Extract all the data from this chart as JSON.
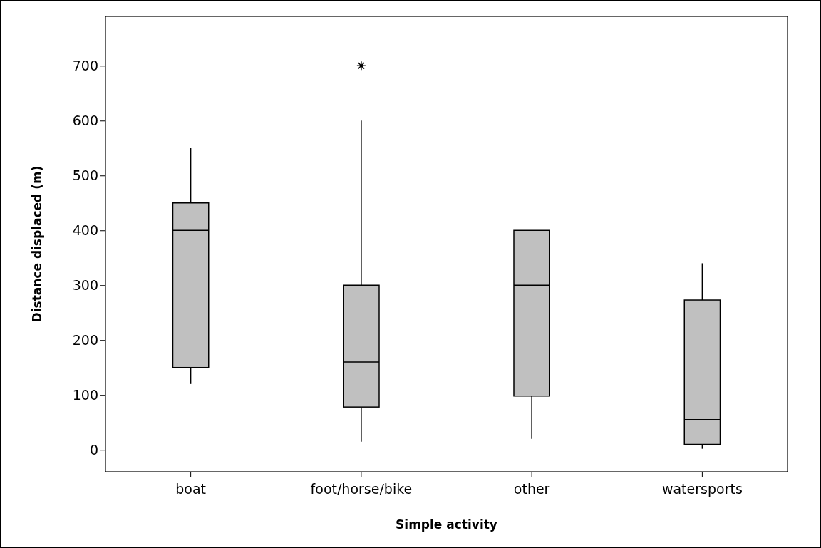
{
  "chart_data": {
    "type": "box",
    "xlabel": "Simple activity",
    "ylabel": "Distance displaced (m)",
    "categories": [
      "boat",
      "foot/horse/bike",
      "other",
      "watersports"
    ],
    "color": "#c0c0c0",
    "boxes": [
      {
        "low": 120,
        "q1": 150,
        "median": 400,
        "q3": 450,
        "high": 550
      },
      {
        "low": 15,
        "q1": 78,
        "median": 160,
        "q3": 300,
        "high": 600,
        "outliers": [
          700
        ]
      },
      {
        "low": 20,
        "q1": 98,
        "median": 300,
        "q3": 400,
        "high": 400
      },
      {
        "low": 2,
        "q1": 10,
        "median": 55,
        "q3": 273,
        "high": 340
      }
    ],
    "ylim": [
      -40,
      790
    ],
    "yticks": [
      0,
      100,
      200,
      300,
      400,
      500,
      600,
      700
    ],
    "grid": false
  }
}
